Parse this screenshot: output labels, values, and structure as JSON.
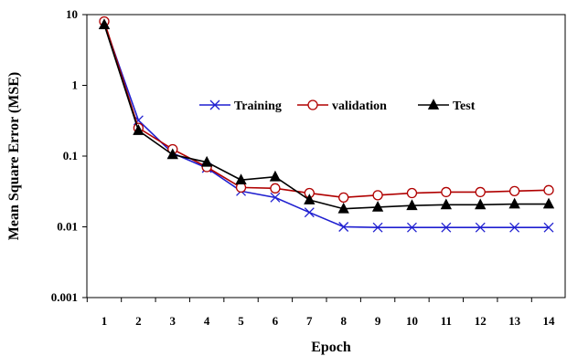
{
  "chart_data": {
    "type": "line",
    "xlabel": "Epoch",
    "ylabel": "Mean Square Error (MSE)",
    "y_scale": "log",
    "ylim": [
      0.001,
      10
    ],
    "xlim": [
      1,
      14
    ],
    "grid": false,
    "legend_position": "inside-upper-center",
    "x_ticks": [
      "1",
      "2",
      "3",
      "4",
      "5",
      "6",
      "7",
      "8",
      "9",
      "10",
      "11",
      "12",
      "13",
      "14"
    ],
    "y_ticks": [
      {
        "value": 10,
        "label": "10"
      },
      {
        "value": 1,
        "label": "1"
      },
      {
        "value": 0.1,
        "label": "0.1"
      },
      {
        "value": 0.01,
        "label": "0.01"
      },
      {
        "value": 0.001,
        "label": "0.001"
      }
    ],
    "x": [
      1,
      2,
      3,
      4,
      5,
      6,
      7,
      8,
      9,
      10,
      11,
      12,
      13,
      14
    ],
    "series": [
      {
        "name": "Training",
        "color": "#1f1fd0",
        "marker": "x",
        "values": [
          7.5,
          0.32,
          0.11,
          0.068,
          0.032,
          0.026,
          0.016,
          0.01,
          0.0098,
          0.0098,
          0.0098,
          0.0098,
          0.0098,
          0.0098
        ]
      },
      {
        "name": "validation",
        "color": "#b00000",
        "marker": "circle",
        "values": [
          8.0,
          0.25,
          0.125,
          0.07,
          0.036,
          0.035,
          0.03,
          0.026,
          0.028,
          0.03,
          0.031,
          0.031,
          0.032,
          0.033
        ]
      },
      {
        "name": "Test",
        "color": "#000000",
        "marker": "triangle",
        "values": [
          7.2,
          0.23,
          0.105,
          0.082,
          0.046,
          0.051,
          0.024,
          0.018,
          0.019,
          0.02,
          0.0205,
          0.0205,
          0.021,
          0.021
        ]
      }
    ]
  }
}
